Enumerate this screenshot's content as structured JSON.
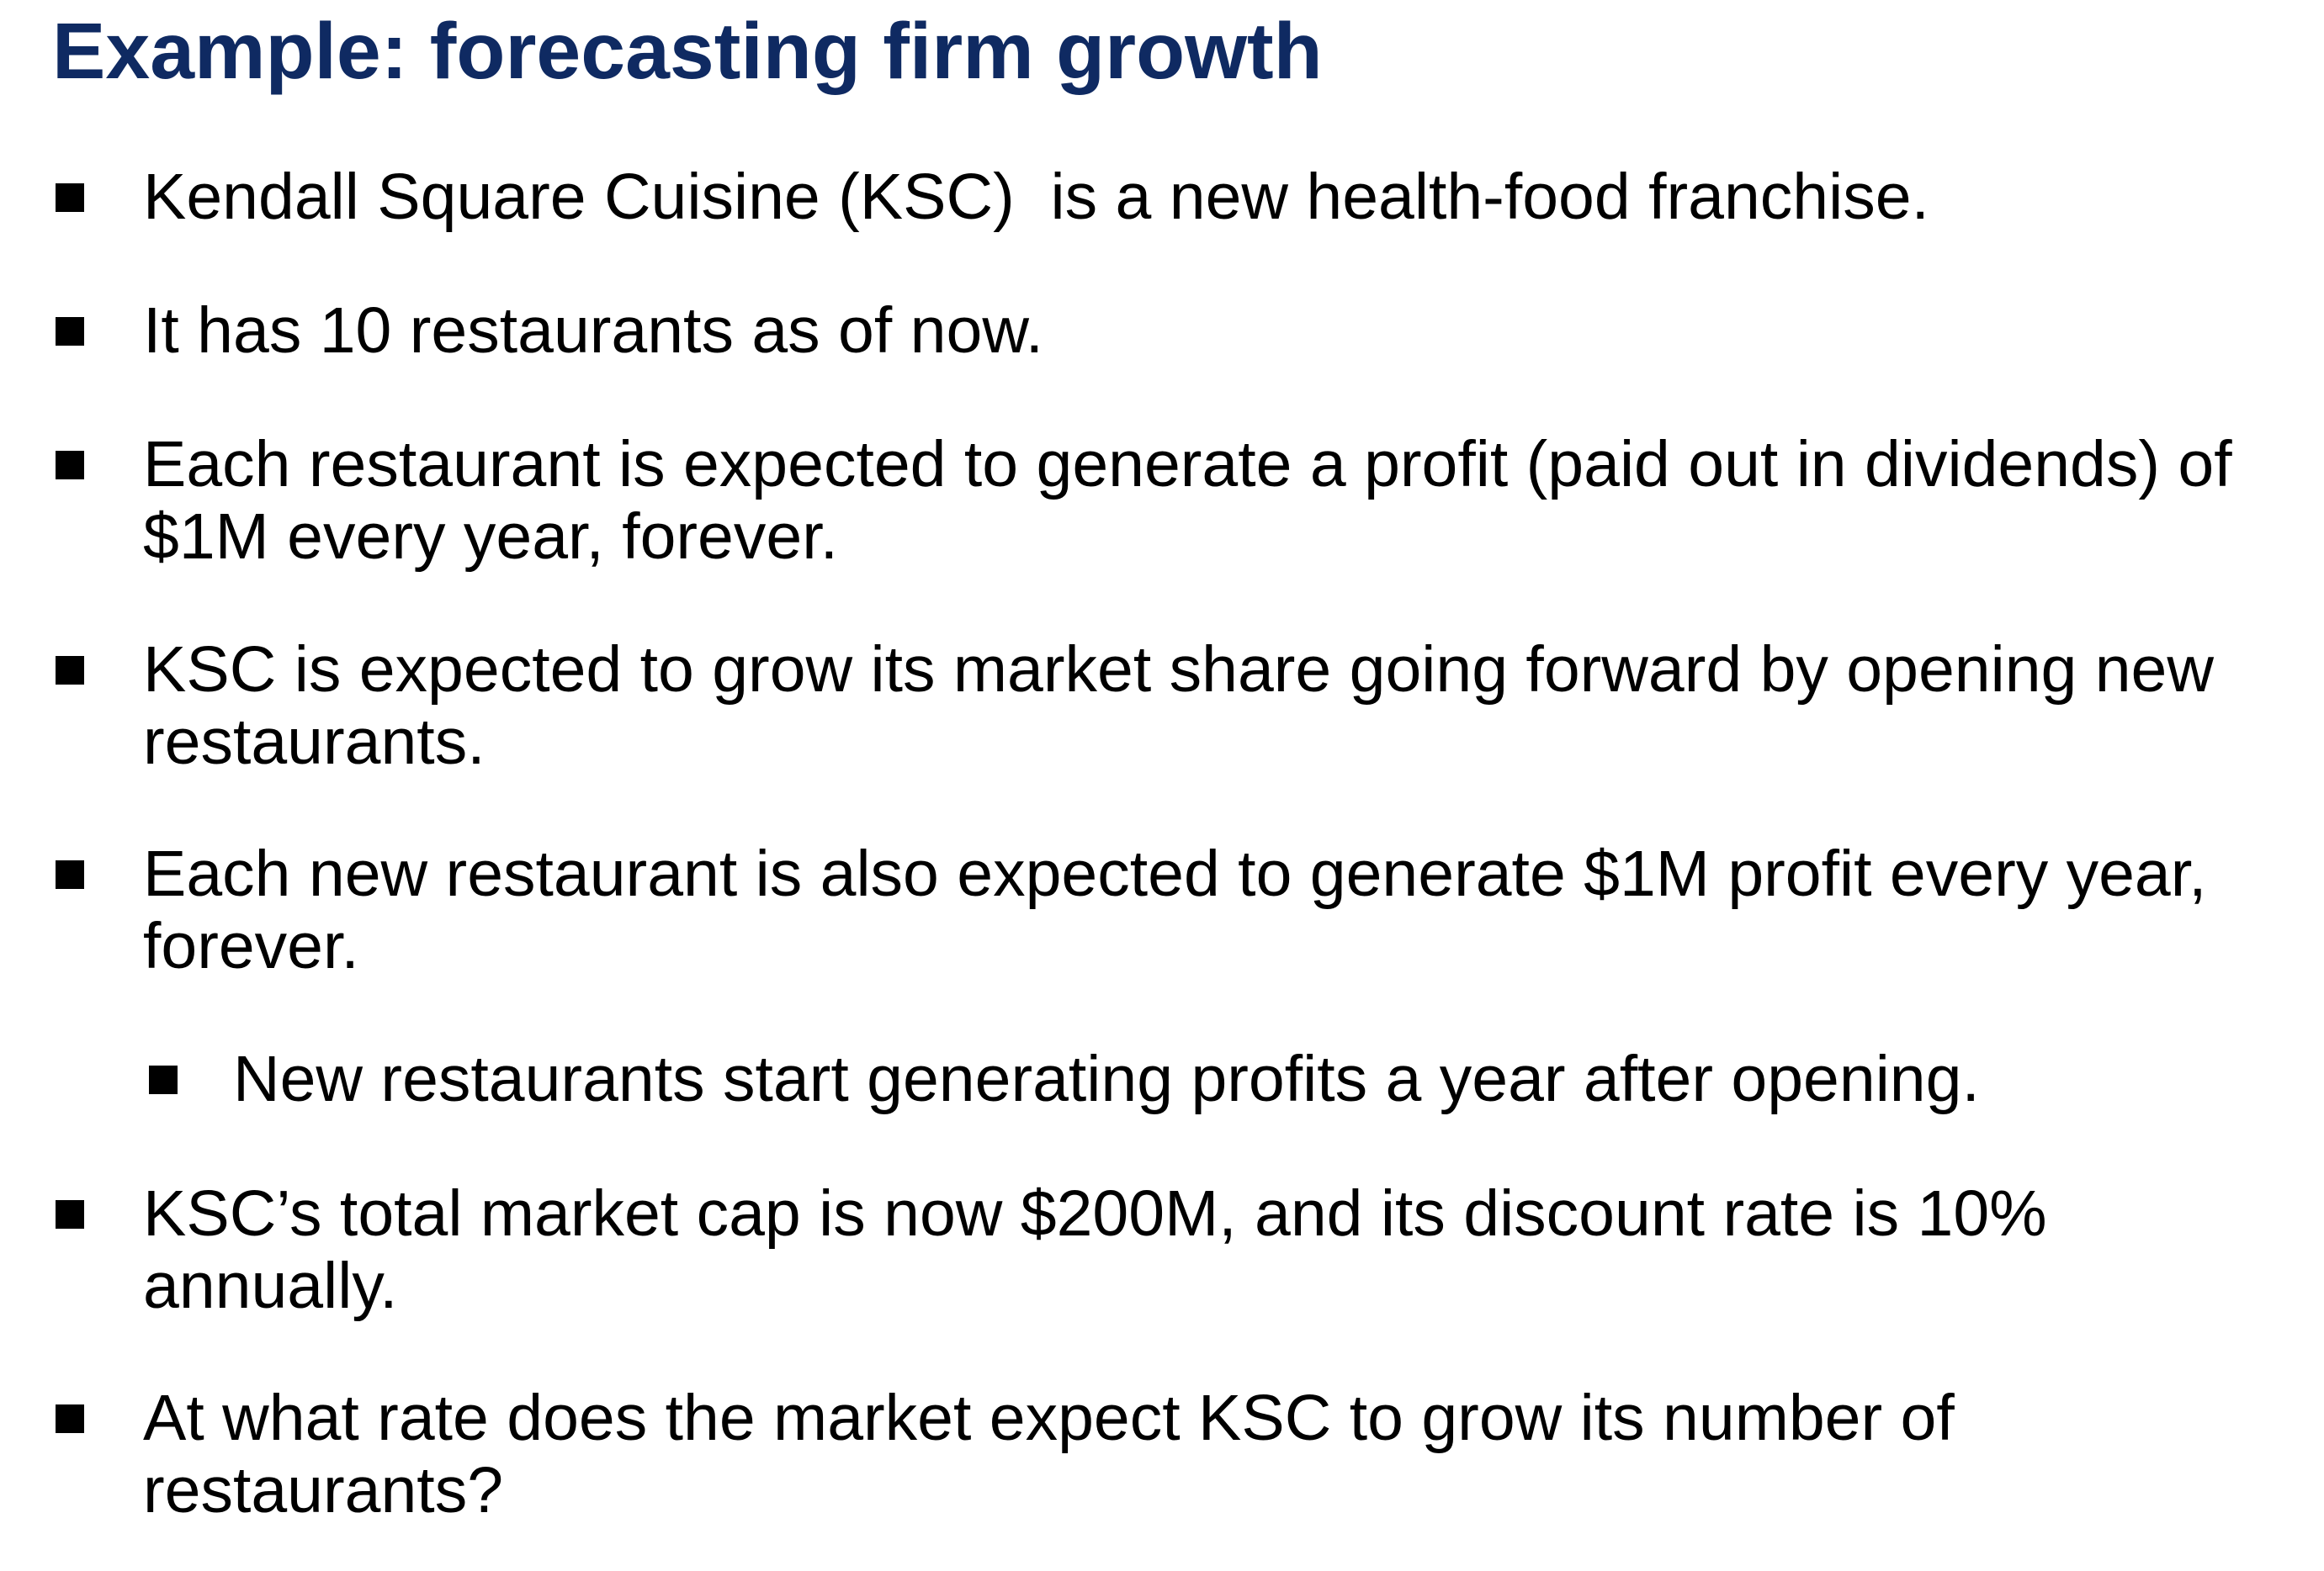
{
  "slide": {
    "title": "Example: forecasting firm growth",
    "bullets": [
      {
        "level": 1,
        "lines": [
          "Kendall Square Cuisine (KSC)  is a new health-food franchise."
        ]
      },
      {
        "level": 1,
        "lines": [
          "It has 10 restaurants as of now."
        ]
      },
      {
        "level": 1,
        "lines": [
          "Each restaurant is expected to generate a profit (paid out in dividends) of",
          "$1M every year, forever."
        ]
      },
      {
        "level": 1,
        "lines": [
          "KSC is expected to grow its market share going forward by opening new",
          "restaurants."
        ]
      },
      {
        "level": 1,
        "lines": [
          "Each new restaurant is also expected to generate $1M profit every year,",
          "forever."
        ]
      },
      {
        "level": 2,
        "lines": [
          "New restaurants start generating profits a year after opening."
        ]
      },
      {
        "level": 1,
        "lines": [
          "KSC’s total market cap is now $200M, and its discount rate is 10%",
          "annually."
        ]
      },
      {
        "level": 1,
        "lines": [
          "At what rate does the market expect KSC to grow its number of",
          "restaurants?"
        ]
      }
    ]
  }
}
